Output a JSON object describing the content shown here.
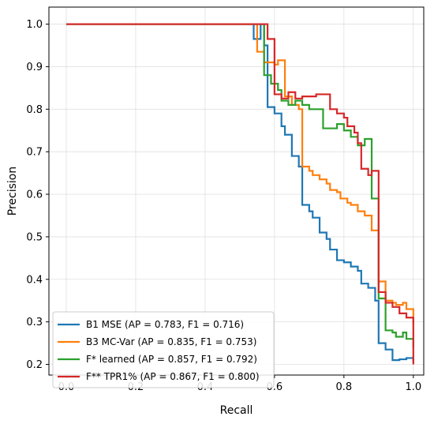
{
  "chart_data": {
    "type": "line",
    "title": "",
    "xlabel": "Recall",
    "ylabel": "Precision",
    "xlim": [
      -0.05,
      1.03
    ],
    "ylim": [
      0.175,
      1.04
    ],
    "grid": true,
    "legend_position": "lower-left",
    "x_ticks": [
      {
        "value": 0.0,
        "label": "0.0"
      },
      {
        "value": 0.2,
        "label": "0.2"
      },
      {
        "value": 0.4,
        "label": "0.4"
      },
      {
        "value": 0.6,
        "label": "0.6"
      },
      {
        "value": 0.8,
        "label": "0.8"
      },
      {
        "value": 1.0,
        "label": "1.0"
      }
    ],
    "y_ticks": [
      {
        "value": 0.2,
        "label": "0.2"
      },
      {
        "value": 0.3,
        "label": "0.3"
      },
      {
        "value": 0.4,
        "label": "0.4"
      },
      {
        "value": 0.5,
        "label": "0.5"
      },
      {
        "value": 0.6,
        "label": "0.6"
      },
      {
        "value": 0.7,
        "label": "0.7"
      },
      {
        "value": 0.8,
        "label": "0.8"
      },
      {
        "value": 0.9,
        "label": "0.9"
      },
      {
        "value": 1.0,
        "label": "1.0"
      }
    ],
    "series": [
      {
        "name": "B1 MSE (AP = 0.783, F1 = 0.716)",
        "color": "#1f77b4",
        "points": [
          [
            0.0,
            1.0
          ],
          [
            0.54,
            1.0
          ],
          [
            0.54,
            0.965
          ],
          [
            0.56,
            0.965
          ],
          [
            0.56,
            1.0
          ],
          [
            0.57,
            1.0
          ],
          [
            0.57,
            0.95
          ],
          [
            0.58,
            0.95
          ],
          [
            0.58,
            0.805
          ],
          [
            0.6,
            0.805
          ],
          [
            0.6,
            0.79
          ],
          [
            0.62,
            0.79
          ],
          [
            0.62,
            0.76
          ],
          [
            0.63,
            0.76
          ],
          [
            0.63,
            0.74
          ],
          [
            0.65,
            0.74
          ],
          [
            0.65,
            0.69
          ],
          [
            0.67,
            0.69
          ],
          [
            0.67,
            0.665
          ],
          [
            0.68,
            0.665
          ],
          [
            0.68,
            0.575
          ],
          [
            0.7,
            0.575
          ],
          [
            0.7,
            0.56
          ],
          [
            0.71,
            0.56
          ],
          [
            0.71,
            0.545
          ],
          [
            0.73,
            0.545
          ],
          [
            0.73,
            0.51
          ],
          [
            0.75,
            0.51
          ],
          [
            0.75,
            0.495
          ],
          [
            0.76,
            0.495
          ],
          [
            0.76,
            0.47
          ],
          [
            0.78,
            0.47
          ],
          [
            0.78,
            0.445
          ],
          [
            0.8,
            0.445
          ],
          [
            0.8,
            0.44
          ],
          [
            0.82,
            0.44
          ],
          [
            0.82,
            0.43
          ],
          [
            0.84,
            0.43
          ],
          [
            0.84,
            0.42
          ],
          [
            0.85,
            0.42
          ],
          [
            0.85,
            0.39
          ],
          [
            0.87,
            0.39
          ],
          [
            0.87,
            0.38
          ],
          [
            0.89,
            0.38
          ],
          [
            0.89,
            0.35
          ],
          [
            0.9,
            0.35
          ],
          [
            0.9,
            0.25
          ],
          [
            0.92,
            0.25
          ],
          [
            0.92,
            0.235
          ],
          [
            0.94,
            0.235
          ],
          [
            0.94,
            0.21
          ],
          [
            0.96,
            0.21
          ],
          [
            0.96,
            0.212
          ],
          [
            0.98,
            0.212
          ],
          [
            0.98,
            0.215
          ],
          [
            1.0,
            0.215
          ],
          [
            1.0,
            0.205
          ]
        ]
      },
      {
        "name": "B3 MC-Var (AP = 0.835, F1 = 0.753)",
        "color": "#ff7f0e",
        "points": [
          [
            0.0,
            1.0
          ],
          [
            0.55,
            1.0
          ],
          [
            0.55,
            0.935
          ],
          [
            0.57,
            0.935
          ],
          [
            0.57,
            0.91
          ],
          [
            0.6,
            0.91
          ],
          [
            0.6,
            0.905
          ],
          [
            0.61,
            0.905
          ],
          [
            0.61,
            0.915
          ],
          [
            0.63,
            0.915
          ],
          [
            0.63,
            0.83
          ],
          [
            0.65,
            0.83
          ],
          [
            0.65,
            0.81
          ],
          [
            0.67,
            0.81
          ],
          [
            0.67,
            0.8
          ],
          [
            0.68,
            0.8
          ],
          [
            0.68,
            0.665
          ],
          [
            0.7,
            0.665
          ],
          [
            0.7,
            0.655
          ],
          [
            0.71,
            0.655
          ],
          [
            0.71,
            0.645
          ],
          [
            0.73,
            0.645
          ],
          [
            0.73,
            0.635
          ],
          [
            0.75,
            0.635
          ],
          [
            0.75,
            0.625
          ],
          [
            0.76,
            0.625
          ],
          [
            0.76,
            0.61
          ],
          [
            0.78,
            0.61
          ],
          [
            0.78,
            0.605
          ],
          [
            0.79,
            0.605
          ],
          [
            0.79,
            0.59
          ],
          [
            0.81,
            0.59
          ],
          [
            0.81,
            0.58
          ],
          [
            0.82,
            0.58
          ],
          [
            0.82,
            0.575
          ],
          [
            0.84,
            0.575
          ],
          [
            0.84,
            0.56
          ],
          [
            0.86,
            0.56
          ],
          [
            0.86,
            0.55
          ],
          [
            0.88,
            0.55
          ],
          [
            0.88,
            0.515
          ],
          [
            0.9,
            0.515
          ],
          [
            0.9,
            0.395
          ],
          [
            0.92,
            0.395
          ],
          [
            0.92,
            0.35
          ],
          [
            0.94,
            0.35
          ],
          [
            0.94,
            0.345
          ],
          [
            0.95,
            0.345
          ],
          [
            0.95,
            0.34
          ],
          [
            0.97,
            0.34
          ],
          [
            0.97,
            0.345
          ],
          [
            0.98,
            0.345
          ],
          [
            0.98,
            0.33
          ],
          [
            1.0,
            0.33
          ],
          [
            1.0,
            0.295
          ]
        ]
      },
      {
        "name": "F* learned (AP = 0.857, F1 = 0.792)",
        "color": "#2ca02c",
        "points": [
          [
            0.0,
            1.0
          ],
          [
            0.57,
            1.0
          ],
          [
            0.57,
            0.88
          ],
          [
            0.59,
            0.88
          ],
          [
            0.59,
            0.86
          ],
          [
            0.61,
            0.86
          ],
          [
            0.61,
            0.845
          ],
          [
            0.62,
            0.845
          ],
          [
            0.62,
            0.82
          ],
          [
            0.64,
            0.82
          ],
          [
            0.64,
            0.81
          ],
          [
            0.66,
            0.81
          ],
          [
            0.66,
            0.82
          ],
          [
            0.68,
            0.82
          ],
          [
            0.68,
            0.81
          ],
          [
            0.7,
            0.81
          ],
          [
            0.7,
            0.8
          ],
          [
            0.74,
            0.8
          ],
          [
            0.74,
            0.755
          ],
          [
            0.78,
            0.755
          ],
          [
            0.78,
            0.765
          ],
          [
            0.8,
            0.765
          ],
          [
            0.8,
            0.75
          ],
          [
            0.82,
            0.75
          ],
          [
            0.82,
            0.735
          ],
          [
            0.84,
            0.735
          ],
          [
            0.84,
            0.715
          ],
          [
            0.86,
            0.715
          ],
          [
            0.86,
            0.73
          ],
          [
            0.88,
            0.73
          ],
          [
            0.88,
            0.59
          ],
          [
            0.9,
            0.59
          ],
          [
            0.9,
            0.355
          ],
          [
            0.92,
            0.355
          ],
          [
            0.92,
            0.28
          ],
          [
            0.94,
            0.28
          ],
          [
            0.94,
            0.275
          ],
          [
            0.95,
            0.275
          ],
          [
            0.95,
            0.265
          ],
          [
            0.97,
            0.265
          ],
          [
            0.97,
            0.275
          ],
          [
            0.98,
            0.275
          ],
          [
            0.98,
            0.26
          ],
          [
            1.0,
            0.26
          ],
          [
            1.0,
            0.24
          ]
        ]
      },
      {
        "name": "F** TPR1% (AP = 0.867, F1 = 0.800)",
        "color": "#d62728",
        "points": [
          [
            0.0,
            1.0
          ],
          [
            0.58,
            1.0
          ],
          [
            0.58,
            0.965
          ],
          [
            0.6,
            0.965
          ],
          [
            0.6,
            0.835
          ],
          [
            0.62,
            0.835
          ],
          [
            0.62,
            0.825
          ],
          [
            0.64,
            0.825
          ],
          [
            0.64,
            0.84
          ],
          [
            0.66,
            0.84
          ],
          [
            0.66,
            0.825
          ],
          [
            0.68,
            0.825
          ],
          [
            0.68,
            0.83
          ],
          [
            0.72,
            0.83
          ],
          [
            0.72,
            0.835
          ],
          [
            0.76,
            0.835
          ],
          [
            0.76,
            0.8
          ],
          [
            0.78,
            0.8
          ],
          [
            0.78,
            0.79
          ],
          [
            0.8,
            0.79
          ],
          [
            0.8,
            0.78
          ],
          [
            0.81,
            0.78
          ],
          [
            0.81,
            0.76
          ],
          [
            0.83,
            0.76
          ],
          [
            0.83,
            0.745
          ],
          [
            0.84,
            0.745
          ],
          [
            0.84,
            0.72
          ],
          [
            0.85,
            0.72
          ],
          [
            0.85,
            0.66
          ],
          [
            0.87,
            0.66
          ],
          [
            0.87,
            0.645
          ],
          [
            0.88,
            0.645
          ],
          [
            0.88,
            0.655
          ],
          [
            0.9,
            0.655
          ],
          [
            0.9,
            0.37
          ],
          [
            0.92,
            0.37
          ],
          [
            0.92,
            0.345
          ],
          [
            0.94,
            0.345
          ],
          [
            0.94,
            0.335
          ],
          [
            0.96,
            0.335
          ],
          [
            0.96,
            0.32
          ],
          [
            0.98,
            0.32
          ],
          [
            0.98,
            0.31
          ],
          [
            1.0,
            0.31
          ],
          [
            1.0,
            0.2
          ]
        ]
      }
    ]
  }
}
